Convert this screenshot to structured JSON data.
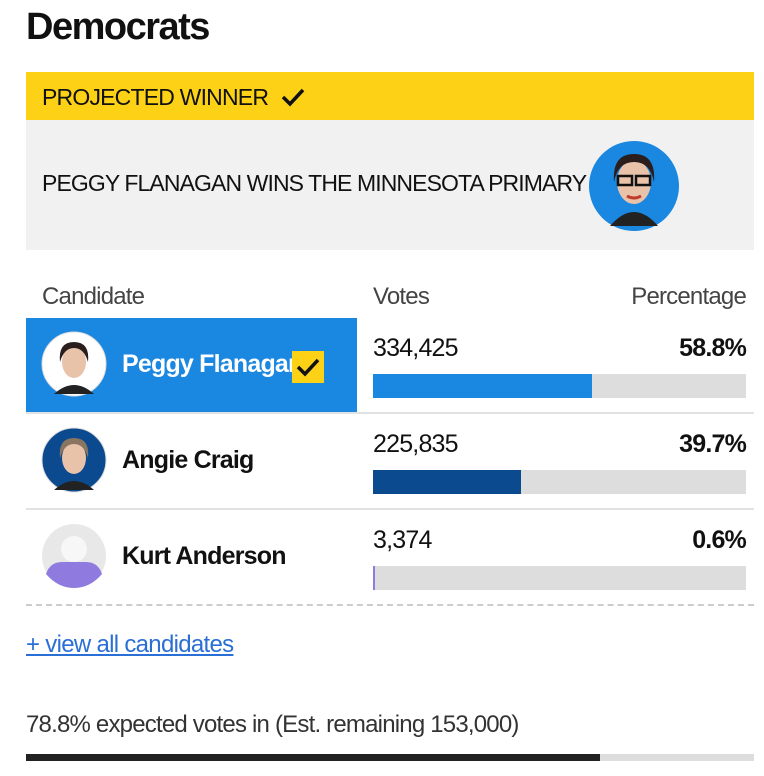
{
  "title": "Democrats",
  "banner": {
    "label": "PROJECTED WINNER",
    "headline": "PEGGY FLANAGAN WINS THE MINNESOTA PRIMARY"
  },
  "table": {
    "headers": [
      "Candidate",
      "Votes",
      "Percentage"
    ],
    "candidates": [
      {
        "name": "Peggy Flanagan",
        "votes": "334,425",
        "percentage": 58.8,
        "percentage_label": "58.8%",
        "color": "#1a87e0",
        "winner": true
      },
      {
        "name": "Angie Craig",
        "votes": "225,835",
        "percentage": 39.7,
        "percentage_label": "39.7%",
        "color": "#0b4a8f",
        "winner": false
      },
      {
        "name": "Kurt Anderson",
        "votes": "3,374",
        "percentage": 0.6,
        "percentage_label": "0.6%",
        "color": "#8f7ae0",
        "winner": false
      }
    ]
  },
  "view_all": "+ view all candidates",
  "expected": {
    "text": "78.8% expected votes in (Est. remaining 153,000)",
    "value": 78.8
  }
}
